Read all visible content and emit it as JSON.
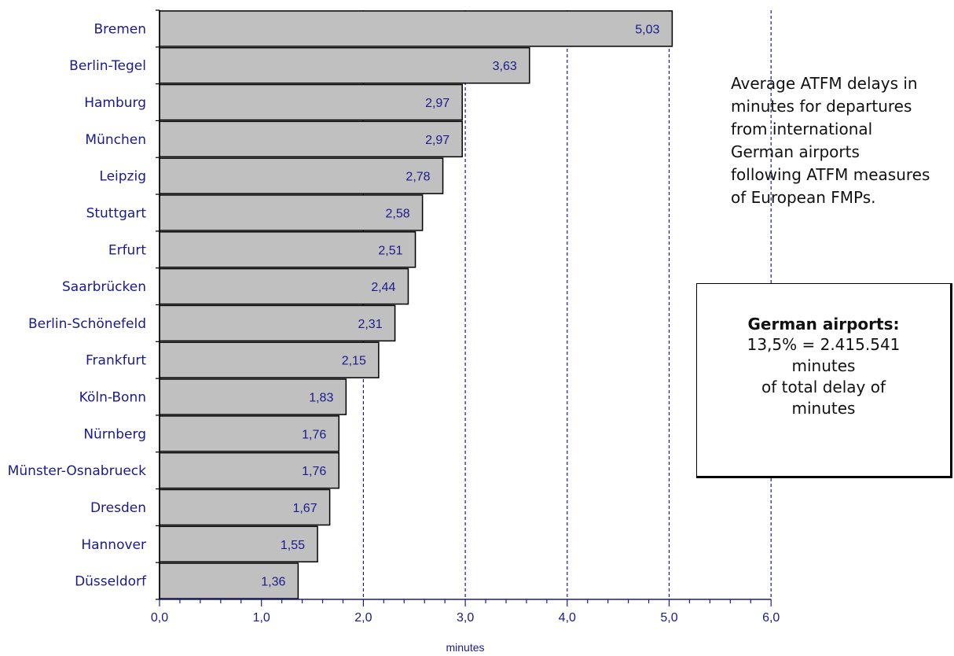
{
  "chart_data": {
    "type": "bar",
    "orientation": "horizontal",
    "categories": [
      "Bremen",
      "Berlin-Tegel",
      "Hamburg",
      "München",
      "Leipzig",
      "Stuttgart",
      "Erfurt",
      "Saarbrücken",
      "Berlin-Schönefeld",
      "Frankfurt",
      "Köln-Bonn",
      "Nürnberg",
      "Münster-Osnabrueck",
      "Dresden",
      "Hannover",
      "Düsseldorf"
    ],
    "values": [
      5.03,
      3.63,
      2.97,
      2.97,
      2.78,
      2.58,
      2.51,
      2.44,
      2.31,
      2.15,
      1.83,
      1.76,
      1.76,
      1.67,
      1.55,
      1.36
    ],
    "value_labels": [
      "5,03",
      "3,63",
      "2,97",
      "2,97",
      "2,78",
      "2,58",
      "2,51",
      "2,44",
      "2,31",
      "2,15",
      "1,83",
      "1,76",
      "1,76",
      "1,67",
      "1,55",
      "1,36"
    ],
    "xlabel": "minutes",
    "ylabel": "",
    "xlim": [
      0,
      6
    ],
    "x_ticks": [
      0,
      1,
      2,
      3,
      4,
      5,
      6
    ],
    "x_tick_labels": [
      "0,0",
      "1,0",
      "2,0",
      "3,0",
      "4,0",
      "5,0",
      "6,0"
    ],
    "grid_lines_x": [
      2,
      3,
      4,
      5,
      6
    ],
    "bar_color": "#c0c0c0",
    "text_color": "#1a1a8c"
  },
  "annotation": {
    "text": "Average ATFM delays in minutes for departures from international German airports following ATFM measures of European FMPs."
  },
  "info_box": {
    "title": "German airports:",
    "line1": "13,5% = 2.415.541",
    "line2": "minutes",
    "line3": "of total delay of",
    "line4": "minutes"
  }
}
